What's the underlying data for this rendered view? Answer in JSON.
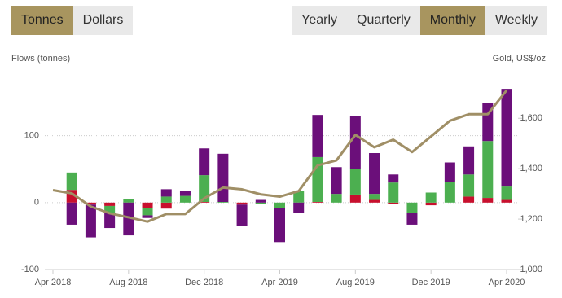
{
  "buttons_left": [
    "Tonnes",
    "Dollars"
  ],
  "active_left": "Tonnes",
  "buttons_right": [
    "Yearly",
    "Quarterly",
    "Monthly",
    "Weekly"
  ],
  "active_right": "Monthly",
  "chart_data": {
    "type": "bar",
    "stacked": true,
    "ylabel": "Flows (tonnes)",
    "y2label": "Gold, US$/oz",
    "categories": [
      "Apr 2018",
      null,
      null,
      null,
      "Aug 2018",
      null,
      null,
      null,
      "Dec 2018",
      null,
      null,
      null,
      "Apr 2019",
      null,
      null,
      null,
      "Aug 2019",
      null,
      null,
      null,
      "Dec 2019",
      null,
      null,
      null,
      "Apr 2020"
    ],
    "series": [
      {
        "color": "#c8102e",
        "values": [
          null,
          19,
          -3,
          -5,
          0,
          -8,
          -9,
          0,
          1,
          0,
          -3,
          0,
          0,
          0,
          1,
          0,
          12,
          4,
          -2,
          0,
          -4,
          0,
          9,
          7,
          4
        ]
      },
      {
        "color": "#4caf50",
        "values": [
          null,
          26,
          0,
          -10,
          5,
          -11,
          9,
          10,
          40,
          1,
          0,
          -2,
          -8,
          17,
          67,
          13,
          38,
          9,
          30,
          -16,
          15,
          31,
          33,
          85,
          20
        ]
      },
      {
        "color": "#6b0f7a",
        "values": [
          null,
          -33,
          -49,
          -23,
          -49,
          -4,
          11,
          7,
          40,
          72,
          -32,
          4,
          -51,
          -16,
          63,
          40,
          79,
          61,
          12,
          -17,
          0,
          29,
          42,
          57,
          146
        ]
      },
      {
        "type": "line",
        "axis": "y2",
        "color": "#a08f66",
        "values": [
          1315,
          1302,
          1250,
          1223,
          1207,
          1190,
          1220,
          1220,
          1282,
          1325,
          1318,
          1298,
          1289,
          1311,
          1413,
          1433,
          1534,
          1485,
          1515,
          1466,
          1528,
          1590,
          1616,
          1616,
          1711
        ]
      }
    ],
    "ylim": [
      -100,
      175
    ],
    "yticks": [
      -100,
      0,
      100
    ],
    "y2lim": [
      1000,
      1730
    ],
    "y2ticks": [
      {
        "value": 1000,
        "label": "1,000"
      },
      {
        "value": 1200,
        "label": "1,200"
      },
      {
        "value": 1400,
        "label": "1,400"
      },
      {
        "value": 1600,
        "label": "1,600"
      }
    ],
    "grid": true
  }
}
